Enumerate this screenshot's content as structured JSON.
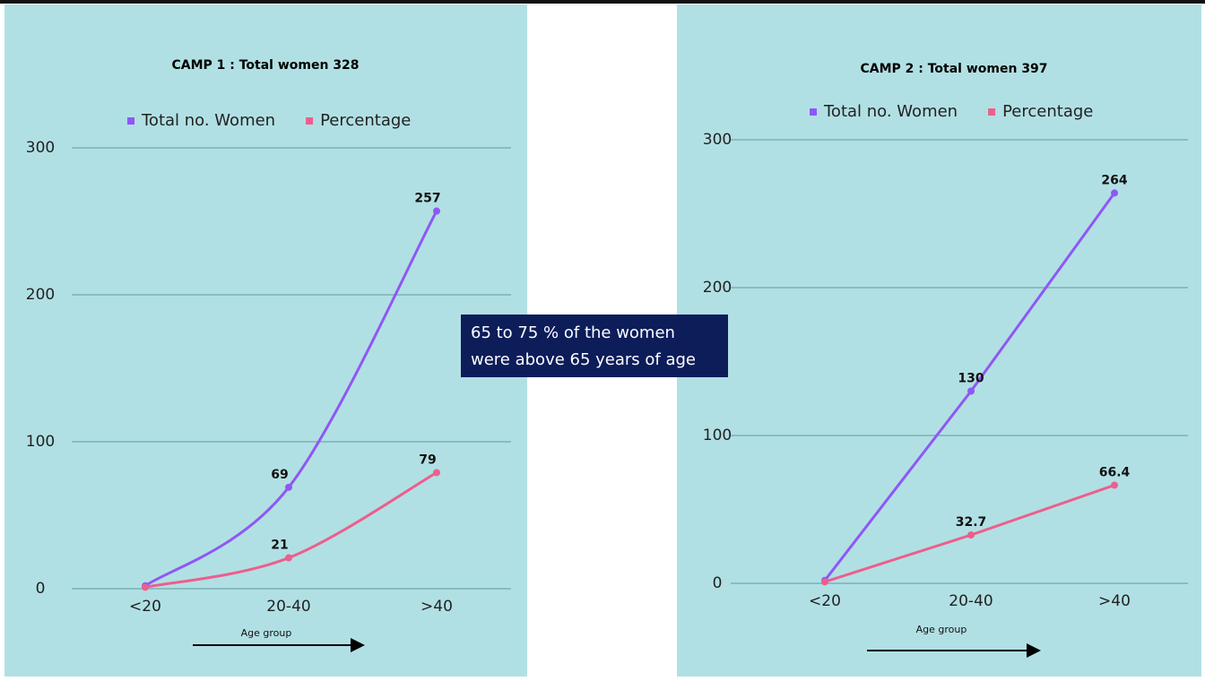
{
  "chart_data": [
    {
      "type": "line",
      "smooth": true,
      "title": "CAMP 1 : Total women 328",
      "categories": [
        "<20",
        "20-40",
        ">40"
      ],
      "series": [
        {
          "name": "Total no. Women",
          "color": "#8f57f7",
          "values": [
            2,
            69,
            257
          ],
          "value_labels": [
            null,
            "69",
            "257"
          ]
        },
        {
          "name": "Percentage",
          "color": "#ec5f8c",
          "values": [
            1,
            21,
            79
          ],
          "value_labels": [
            null,
            "21",
            "79"
          ]
        }
      ],
      "ylim": [
        0,
        300
      ],
      "yticks": [
        0,
        100,
        200,
        300
      ],
      "grid": true,
      "legend": "top",
      "x_label": "Age group"
    },
    {
      "type": "line",
      "smooth": false,
      "title": "CAMP 2 : Total women 397",
      "categories": [
        "<20",
        "20-40",
        ">40"
      ],
      "series": [
        {
          "name": "Total no. Women",
          "color": "#8f57f7",
          "values": [
            2,
            130,
            264
          ],
          "value_labels": [
            null,
            "130",
            "264"
          ]
        },
        {
          "name": "Percentage",
          "color": "#ec5f8c",
          "values": [
            1,
            32.7,
            66.4
          ],
          "value_labels": [
            null,
            "32.7",
            "66.4"
          ]
        }
      ],
      "ylim": [
        0,
        300
      ],
      "yticks": [
        0,
        100,
        200,
        300
      ],
      "grid": true,
      "legend": "top",
      "x_label": "Age group"
    }
  ],
  "callout": [
    "65 to 75 % of the women",
    "were above 65 years of age"
  ]
}
